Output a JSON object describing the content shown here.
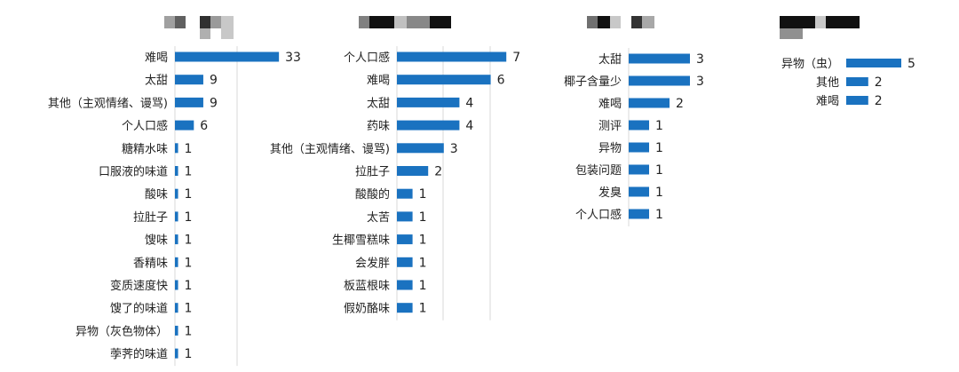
{
  "colors": {
    "bar": "#1a72c0",
    "grid": "#d9d9d9",
    "text": "#222222"
  },
  "chart_data": [
    {
      "type": "bar",
      "orientation": "horizontal",
      "title": "",
      "grid": true,
      "categories": [
        "难喝",
        "太甜",
        "其他（主观情绪、谩骂)",
        "个人口感",
        "糖精水味",
        "口服液的味道",
        "酸味",
        "拉肚子",
        "馊味",
        "香精味",
        "变质速度快",
        "馊了的味道",
        "异物（灰色物体）",
        "荸荠的味道"
      ],
      "values": [
        33,
        9,
        9,
        6,
        1,
        1,
        1,
        1,
        1,
        1,
        1,
        1,
        1,
        1
      ],
      "xlim": [
        0,
        40
      ]
    },
    {
      "type": "bar",
      "orientation": "horizontal",
      "title": "",
      "grid": true,
      "categories": [
        "个人口感",
        "难喝",
        "太甜",
        "药味",
        "其他（主观情绪、谩骂)",
        "拉肚子",
        "酸酸的",
        "太苦",
        "生椰雪糕味",
        "会发胖",
        "板蓝根味",
        "假奶酪味"
      ],
      "values": [
        7,
        6,
        4,
        4,
        3,
        2,
        1,
        1,
        1,
        1,
        1,
        1
      ],
      "xlim": [
        0,
        8
      ]
    },
    {
      "type": "bar",
      "orientation": "horizontal",
      "title": "",
      "grid": true,
      "categories": [
        "太甜",
        "椰子含量少",
        "难喝",
        "测评",
        "异物",
        "包装问题",
        "发臭",
        "个人口感"
      ],
      "values": [
        3,
        3,
        2,
        1,
        1,
        1,
        1,
        1
      ],
      "xlim": [
        0,
        4
      ]
    },
    {
      "type": "bar",
      "orientation": "horizontal",
      "title": "",
      "grid": false,
      "categories": [
        "异物（虫）",
        "其他",
        "难喝"
      ],
      "values": [
        5,
        2,
        2
      ],
      "xlim": [
        0,
        5
      ]
    }
  ]
}
